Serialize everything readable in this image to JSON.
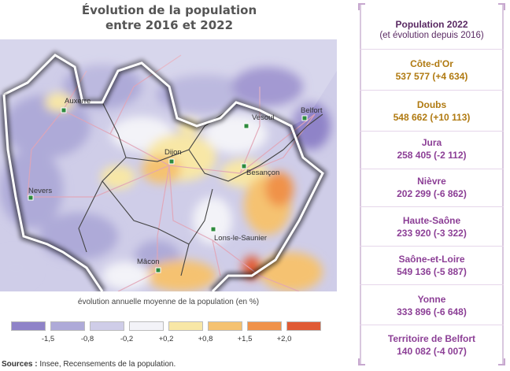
{
  "title_line1": "Évolution de la population",
  "title_line2": "entre 2016 et 2022",
  "cities": [
    {
      "name": "Auxerre"
    },
    {
      "name": "Vesoul"
    },
    {
      "name": "Belfort"
    },
    {
      "name": "Dijon"
    },
    {
      "name": "Besançon"
    },
    {
      "name": "Nevers"
    },
    {
      "name": "Lons-le-Saunier"
    },
    {
      "name": "Mâcon"
    }
  ],
  "legend": {
    "title": "évolution annuelle moyenne de la population (en %)",
    "colors": [
      "#8f83c8",
      "#aeaad8",
      "#cfcde8",
      "#f3f3f8",
      "#f8e7a6",
      "#f5c271",
      "#f0924a",
      "#e05a34"
    ],
    "breaks": [
      "-1,5",
      "-0,8",
      "-0,2",
      "+0,2",
      "+0,8",
      "+1,5",
      "+2,0"
    ]
  },
  "sources_label": "Sources :",
  "sources_text": " Insee, Recensements de la population.",
  "panel": {
    "header_line1": "Population 2022",
    "header_line2": "(et évolution depuis 2016)",
    "departments": [
      {
        "name": "Côte-d'Or",
        "value": "537 577 (+4 634)",
        "color": "#b07a11"
      },
      {
        "name": "Doubs",
        "value": "548 662 (+10 113)",
        "color": "#b07a11"
      },
      {
        "name": "Jura",
        "value": "258 405 (-2 112)",
        "color": "#8c3f96"
      },
      {
        "name": "Nièvre",
        "value": "202 299 (-6 862)",
        "color": "#8c3f96"
      },
      {
        "name": "Haute-Saône",
        "value": "233 920 (-3 322)",
        "color": "#8c3f96"
      },
      {
        "name": "Saône-et-Loire",
        "value": "549 136 (-5 887)",
        "color": "#8c3f96"
      },
      {
        "name": "Yonne",
        "value": "333 896 (-6 648)",
        "color": "#8c3f96"
      },
      {
        "name": "Territoire de Belfort",
        "value": "140 082 (-4 007)",
        "color": "#8c3f96"
      }
    ]
  }
}
